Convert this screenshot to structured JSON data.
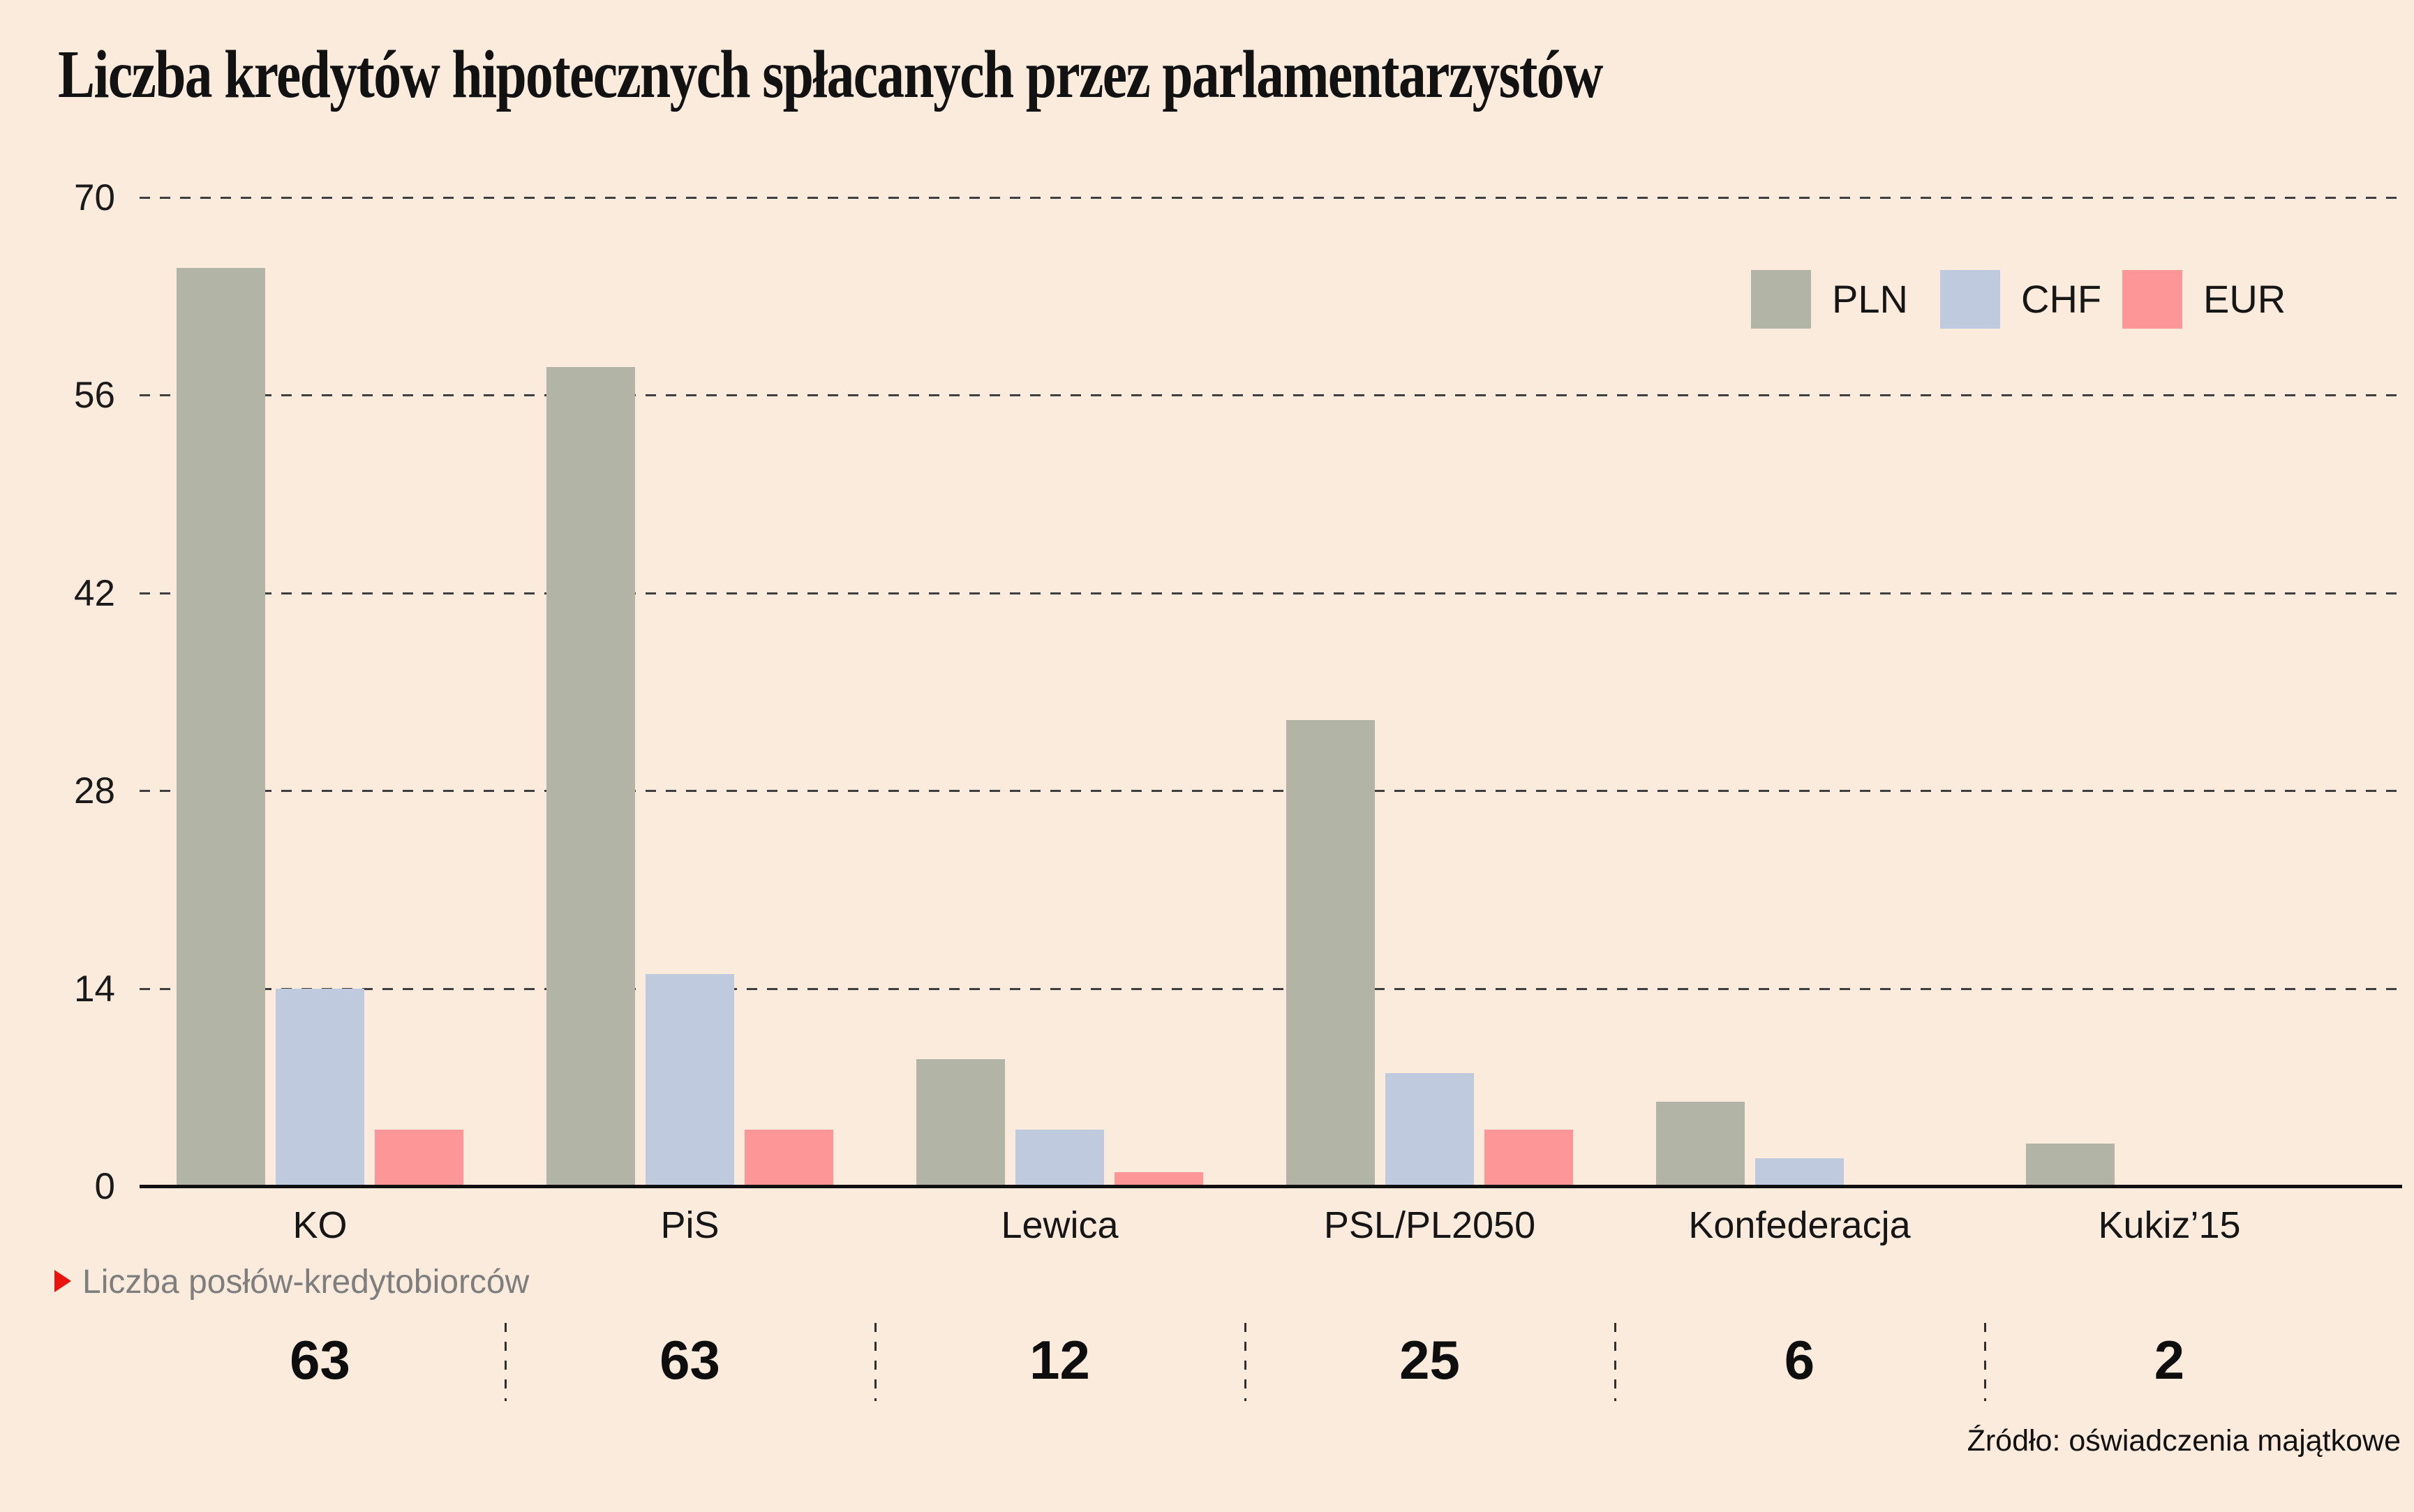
{
  "title": "Liczba kredytów hipotecznych spłacanych przez parlamentarzystów",
  "source": "Źródło: oświadczenia majątkowe",
  "annotation": {
    "label": "Liczba posłów-kredytobiorców"
  },
  "colors": {
    "background": "#fbebdc",
    "pln": "#b2b4a5",
    "chf": "#c0cade",
    "eur": "#fd9797",
    "marker_red": "#e8130c",
    "annotation_gray": "#7e7e7e",
    "axis_black": "#101010",
    "grid_gray": "#3f3f3f"
  },
  "chart_data": {
    "type": "bar",
    "title": "Liczba kredytów hipotecznych spłacanych przez parlamentarzystów",
    "categories": [
      "KO",
      "PiS",
      "Lewica",
      "PSL/PL2050",
      "Konfederacja",
      "Kukiz’15"
    ],
    "series": [
      {
        "name": "PLN",
        "color_key": "pln",
        "values": [
          65,
          58,
          9,
          33,
          6,
          3
        ]
      },
      {
        "name": "CHF",
        "color_key": "chf",
        "values": [
          14,
          15,
          4,
          8,
          2,
          0
        ]
      },
      {
        "name": "EUR",
        "color_key": "eur",
        "values": [
          4,
          4,
          1,
          4,
          0,
          0
        ]
      }
    ],
    "xlabel": "",
    "ylabel": "",
    "ylim": [
      0,
      70
    ],
    "yticks": [
      0,
      14,
      28,
      42,
      56,
      70
    ],
    "grid": "horizontal-dashed",
    "legend_position": "top-right",
    "footer_row": {
      "label": "Liczba posłów-kredytobiorców",
      "values": [
        63,
        63,
        12,
        25,
        6,
        2
      ]
    }
  }
}
